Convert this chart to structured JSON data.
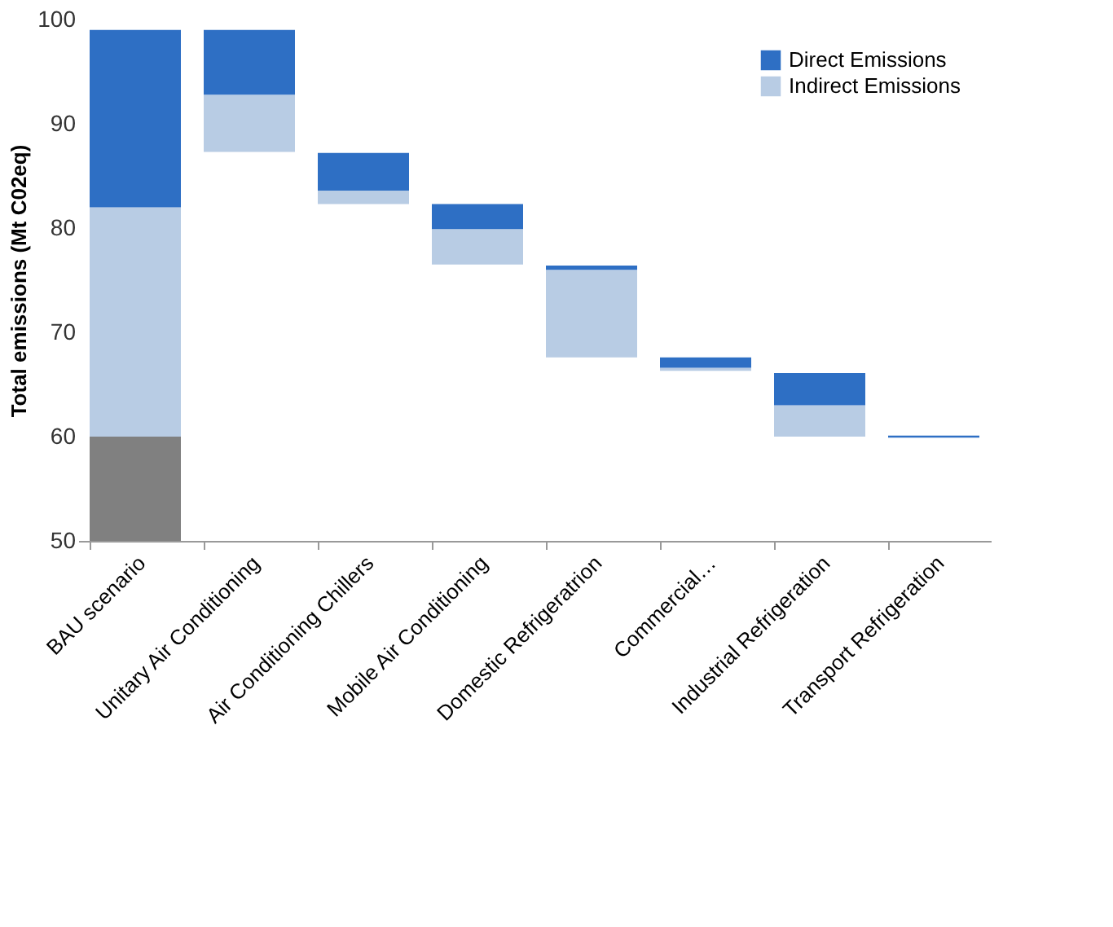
{
  "chart_data": {
    "type": "bar",
    "ylabel": "Total emissions (Mt C02eq)",
    "categories": [
      "BAU scenario",
      "Unitary Air Conditioning",
      "Air Conditioning Chillers",
      "Mobile Air Conditioning",
      "Domestic Refrigeratrion",
      "Commercial…",
      "Industrial Refrigeration",
      "Transport Refrigeration"
    ],
    "series": [
      {
        "color": "#808080",
        "base": [
          50,
          null,
          null,
          null,
          null,
          null,
          null,
          null
        ],
        "values": [
          10,
          null,
          null,
          null,
          null,
          null,
          null,
          null
        ]
      },
      {
        "name": "Indirect Emissions",
        "color": "#b8cce4",
        "base": [
          60,
          87.3,
          82.3,
          76.5,
          67.6,
          66.3,
          60.0,
          null
        ],
        "values": [
          22,
          5.5,
          1.3,
          3.4,
          8.4,
          0.3,
          3.0,
          null
        ]
      },
      {
        "name": "Direct Emissions",
        "color": "#2e6fc4",
        "base": [
          82,
          92.8,
          83.6,
          79.9,
          76.0,
          66.6,
          63.0,
          59.9
        ],
        "values": [
          17,
          6.2,
          3.6,
          2.4,
          0.4,
          1.0,
          3.1,
          0.2
        ]
      }
    ],
    "ylim": [
      50,
      100
    ],
    "yticks": [
      50,
      60,
      70,
      80,
      90,
      100
    ],
    "grid": false,
    "legend": "top right"
  }
}
